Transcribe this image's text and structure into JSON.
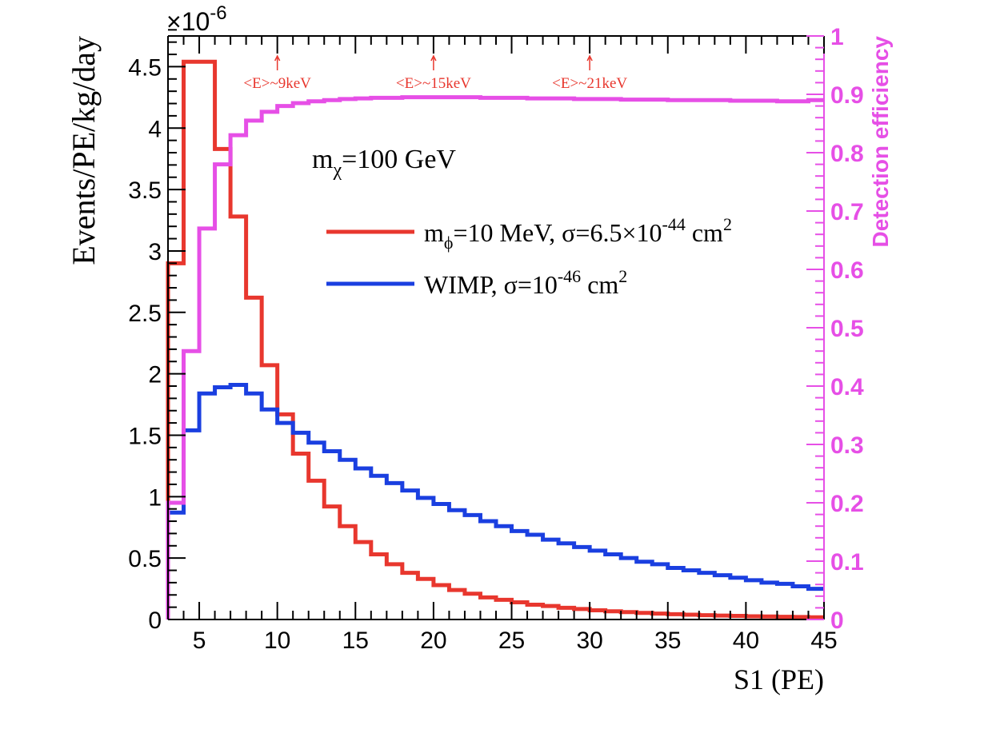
{
  "chart_data": {
    "type": "line",
    "histogram": true,
    "xlabel": "S1 (PE)",
    "ylabel": "Events/PE/kg/day",
    "y_exponent": "×10",
    "y_exponent_power": "-6",
    "y2label": "Detection efficiency",
    "xlim": [
      3,
      45
    ],
    "ylim": [
      0,
      4.75
    ],
    "y2lim": [
      0,
      1
    ],
    "x_ticks": [
      5,
      10,
      15,
      20,
      25,
      30,
      35,
      40,
      45
    ],
    "y_ticks": [
      0,
      0.5,
      1,
      1.5,
      2,
      2.5,
      3,
      3.5,
      4,
      4.5
    ],
    "y_tick_labels": [
      "0",
      "0.5",
      "1",
      "1.5",
      "2",
      "2.5",
      "3",
      "3.5",
      "4",
      "4.5"
    ],
    "y2_ticks": [
      0,
      0.1,
      0.2,
      0.3,
      0.4,
      0.5,
      0.6,
      0.7,
      0.8,
      0.9,
      1
    ],
    "y2_tick_labels": [
      "0",
      "0.1",
      "0.2",
      "0.3",
      "0.4",
      "0.5",
      "0.6",
      "0.7",
      "0.8",
      "0.9",
      "1"
    ],
    "bin_edges": [
      3,
      4,
      5,
      6,
      7,
      8,
      9,
      10,
      11,
      12,
      13,
      14,
      15,
      16,
      17,
      18,
      19,
      20,
      21,
      22,
      23,
      24,
      25,
      26,
      27,
      28,
      29,
      30,
      31,
      32,
      33,
      34,
      35,
      36,
      37,
      38,
      39,
      40,
      41,
      42,
      43,
      44,
      45
    ],
    "annotation": {
      "text": "m",
      "sub": "χ",
      "rest": "=100 GeV"
    },
    "energy_markers": [
      {
        "x": 10,
        "label": "<E>~9keV"
      },
      {
        "x": 20,
        "label": "<E>~15keV"
      },
      {
        "x": 30,
        "label": "<E>~21keV"
      }
    ],
    "legend": {
      "placement": "center-right",
      "entries": [
        {
          "series": 0,
          "label_prefix": "m",
          "label_sub": "ϕ",
          "label_mid": "=10 MeV, σ=6.5×10",
          "label_sup": "-44",
          "label_end": " cm",
          "label_sup2": "2"
        },
        {
          "series": 1,
          "label_prefix": "WIMP, σ=10",
          "label_sup": "-46",
          "label_end": " cm",
          "label_sup2": "2"
        }
      ]
    },
    "series": [
      {
        "axis": "left",
        "color": "#e8372e",
        "values": [
          2.9,
          4.54,
          4.54,
          3.83,
          3.28,
          2.62,
          2.07,
          1.67,
          1.35,
          1.13,
          0.92,
          0.76,
          0.63,
          0.53,
          0.45,
          0.38,
          0.33,
          0.28,
          0.24,
          0.21,
          0.18,
          0.16,
          0.14,
          0.12,
          0.11,
          0.095,
          0.085,
          0.075,
          0.067,
          0.06,
          0.054,
          0.048,
          0.043,
          0.039,
          0.035,
          0.032,
          0.029,
          0.026,
          0.024,
          0.022,
          0.02,
          0.018
        ]
      },
      {
        "axis": "left",
        "color": "#1a3fe0",
        "values": [
          0.87,
          1.54,
          1.84,
          1.89,
          1.91,
          1.84,
          1.71,
          1.6,
          1.52,
          1.44,
          1.37,
          1.3,
          1.23,
          1.17,
          1.11,
          1.05,
          0.99,
          0.94,
          0.89,
          0.85,
          0.8,
          0.76,
          0.72,
          0.69,
          0.65,
          0.62,
          0.59,
          0.56,
          0.53,
          0.5,
          0.47,
          0.45,
          0.42,
          0.4,
          0.38,
          0.36,
          0.34,
          0.32,
          0.3,
          0.29,
          0.27,
          0.25
        ]
      },
      {
        "axis": "right",
        "color": "#e64fe6",
        "values": [
          0.2,
          0.46,
          0.67,
          0.78,
          0.83,
          0.855,
          0.87,
          0.88,
          0.885,
          0.888,
          0.89,
          0.892,
          0.893,
          0.894,
          0.894,
          0.895,
          0.895,
          0.895,
          0.895,
          0.895,
          0.894,
          0.894,
          0.894,
          0.893,
          0.893,
          0.893,
          0.892,
          0.892,
          0.892,
          0.891,
          0.891,
          0.891,
          0.89,
          0.89,
          0.89,
          0.89,
          0.889,
          0.889,
          0.889,
          0.888,
          0.888,
          0.89
        ]
      }
    ]
  }
}
